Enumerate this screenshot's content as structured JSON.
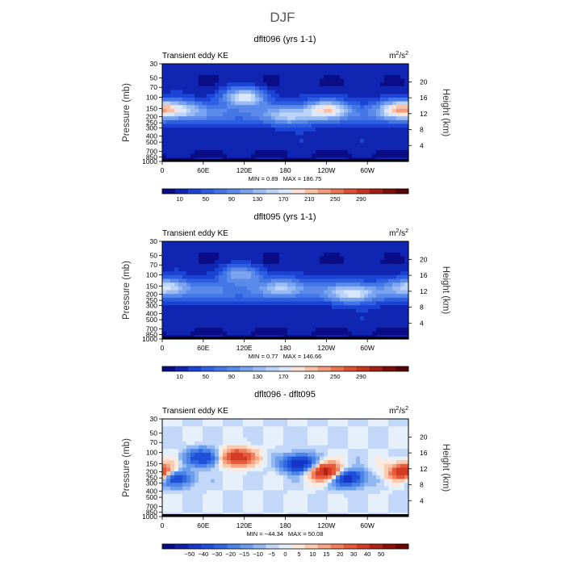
{
  "figure": {
    "title": "DJF"
  },
  "chart_data": [
    {
      "type": "heatmap",
      "title": "dflt096 (yrs 1-1)",
      "left_subtitle": "Transient eddy KE",
      "units": {
        "base": "m",
        "sup1": "2",
        "mid": "/s",
        "sup2": "2"
      },
      "ylabel": "Pressure (mb)",
      "y2label": "Height (km)",
      "x_ticks": [
        "0",
        "60E",
        "120E",
        "180",
        "120W",
        "60W"
      ],
      "x_tick_values": [
        0,
        60,
        120,
        180,
        240,
        300
      ],
      "xlim": [
        0,
        360
      ],
      "y_ticks": [
        "30",
        "50",
        "70",
        "100",
        "150",
        "200",
        "250",
        "300",
        "400",
        "500",
        "700",
        "850",
        "1000"
      ],
      "y_tick_values": [
        30,
        50,
        70,
        100,
        150,
        200,
        250,
        300,
        400,
        500,
        700,
        850,
        1000
      ],
      "ylim": [
        30,
        1000
      ],
      "y2_ticks": [
        "4",
        "8",
        "12",
        "16",
        "20"
      ],
      "y2_tick_values": [
        4,
        8,
        12,
        16,
        20
      ],
      "min_label": "MIN =",
      "min": "0.89",
      "max_label": "MAX =",
      "max": "186.75",
      "colorbar_labels": [
        "10",
        "50",
        "90",
        "130",
        "170",
        "210",
        "250",
        "290"
      ],
      "colors": [
        "#0a0d86",
        "#1026b3",
        "#1c44d4",
        "#2e5fe2",
        "#4476e6",
        "#5b8bea",
        "#7aa3ee",
        "#9bbcf3",
        "#bcd4f8",
        "#dbe8fc",
        "#fce2d4",
        "#f8c0a4",
        "#f29c7c",
        "#ea7654",
        "#dd5134",
        "#c63520",
        "#a31e12",
        "#7c0e08",
        "#560404"
      ],
      "features": [
        {
          "lon": 120,
          "p": 100,
          "value": 187
        },
        {
          "lon": 240,
          "p": 150,
          "value": 160
        },
        {
          "lon": 348,
          "p": 150,
          "value": 165
        },
        {
          "lon": 25,
          "p": 150,
          "value": 135
        },
        {
          "lon": 190,
          "p": 200,
          "value": 125
        }
      ]
    },
    {
      "type": "heatmap",
      "title": "dflt095 (yrs 1-1)",
      "left_subtitle": "Transient eddy KE",
      "units": {
        "base": "m",
        "sup1": "2",
        "mid": "/s",
        "sup2": "2"
      },
      "ylabel": "Pressure (mb)",
      "y2label": "Height (km)",
      "x_ticks": [
        "0",
        "60E",
        "120E",
        "180",
        "120W",
        "60W"
      ],
      "x_tick_values": [
        0,
        60,
        120,
        180,
        240,
        300
      ],
      "xlim": [
        0,
        360
      ],
      "y_ticks": [
        "30",
        "50",
        "70",
        "100",
        "150",
        "200",
        "250",
        "300",
        "400",
        "500",
        "700",
        "850",
        "1000"
      ],
      "y_tick_values": [
        30,
        50,
        70,
        100,
        150,
        200,
        250,
        300,
        400,
        500,
        700,
        850,
        1000
      ],
      "ylim": [
        30,
        1000
      ],
      "y2_ticks": [
        "4",
        "8",
        "12",
        "16",
        "20"
      ],
      "y2_tick_values": [
        4,
        8,
        12,
        16,
        20
      ],
      "min_label": "MIN =",
      "min": "0.77",
      "max_label": "MAX =",
      "max": "146.66",
      "colorbar_labels": [
        "10",
        "50",
        "90",
        "130",
        "170",
        "210",
        "250",
        "290"
      ],
      "colors": [
        "#0a0d86",
        "#1026b3",
        "#1c44d4",
        "#2e5fe2",
        "#4476e6",
        "#5b8bea",
        "#7aa3ee",
        "#9bbcf3",
        "#bcd4f8",
        "#dbe8fc",
        "#fce2d4",
        "#f8c0a4",
        "#f29c7c",
        "#ea7654",
        "#dd5134",
        "#c63520",
        "#a31e12",
        "#7c0e08",
        "#560404"
      ],
      "features": [
        {
          "lon": 8,
          "p": 150,
          "value": 140
        },
        {
          "lon": 115,
          "p": 100,
          "value": 145
        },
        {
          "lon": 280,
          "p": 200,
          "value": 147
        },
        {
          "lon": 180,
          "p": 150,
          "value": 118
        }
      ]
    },
    {
      "type": "heatmap",
      "title": "dflt096 - dflt095",
      "left_subtitle": "Transient eddy KE",
      "units": {
        "base": "m",
        "sup1": "2",
        "mid": "/s",
        "sup2": "2"
      },
      "ylabel": "Pressure (mb)",
      "y2label": "Height (km)",
      "x_ticks": [
        "0",
        "60E",
        "120E",
        "180",
        "120W",
        "60W"
      ],
      "x_tick_values": [
        0,
        60,
        120,
        180,
        240,
        300
      ],
      "xlim": [
        0,
        360
      ],
      "y_ticks": [
        "30",
        "50",
        "70",
        "100",
        "150",
        "200",
        "250",
        "300",
        "400",
        "500",
        "700",
        "850",
        "1000"
      ],
      "y_tick_values": [
        30,
        50,
        70,
        100,
        150,
        200,
        250,
        300,
        400,
        500,
        700,
        850,
        1000
      ],
      "ylim": [
        30,
        1000
      ],
      "y2_ticks": [
        "4",
        "8",
        "12",
        "16",
        "20"
      ],
      "y2_tick_values": [
        4,
        8,
        12,
        16,
        20
      ],
      "min_label": "MIN =",
      "min": "−44.34",
      "max_label": "MAX =",
      "max": "50.08",
      "colorbar_labels": [
        "−50",
        "−40",
        "−30",
        "−20",
        "−15",
        "−10",
        "−5",
        "0",
        "5",
        "10",
        "15",
        "20",
        "30",
        "40",
        "50"
      ],
      "colors": [
        "#0a0d86",
        "#0f1fa8",
        "#1536c6",
        "#1f4fd8",
        "#3168e0",
        "#4a82e6",
        "#6a9cec",
        "#92b8f2",
        "#c3d8f8",
        "#e6f0fb",
        "#fdeadf",
        "#f9cbb1",
        "#f4a585",
        "#ee7f5e",
        "#e45a3a",
        "#d23b24",
        "#b02312",
        "#8a1206",
        "#680600"
      ],
      "features": [
        {
          "lon": 240,
          "p": 200,
          "value": 48
        },
        {
          "lon": 110,
          "p": 120,
          "value": 42
        },
        {
          "lon": 355,
          "p": 200,
          "value": 40
        },
        {
          "lon": 200,
          "p": 150,
          "value": -44
        },
        {
          "lon": 270,
          "p": 250,
          "value": -40
        },
        {
          "lon": 60,
          "p": 120,
          "value": -30
        },
        {
          "lon": 20,
          "p": 250,
          "value": -28
        }
      ]
    }
  ]
}
